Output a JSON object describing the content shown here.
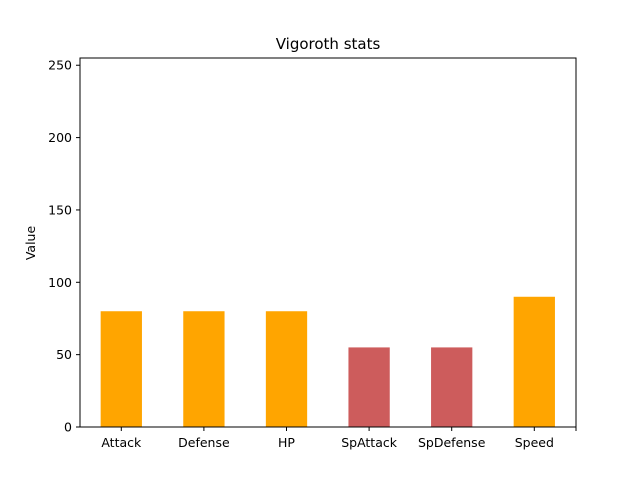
{
  "chart_data": {
    "type": "bar",
    "title": "Vigoroth stats",
    "xlabel": "",
    "ylabel": "Value",
    "categories": [
      "Attack",
      "Defense",
      "HP",
      "SpAttack",
      "SpDefense",
      "Speed"
    ],
    "values": [
      80,
      80,
      80,
      55,
      55,
      90
    ],
    "bar_colors": [
      "#ffa500",
      "#ffa500",
      "#ffa500",
      "#cd5c5c",
      "#cd5c5c",
      "#ffa500"
    ],
    "ylim": [
      0,
      255
    ],
    "yticks": [
      0,
      50,
      100,
      150,
      200,
      250
    ],
    "grid": false,
    "legend": "none"
  }
}
